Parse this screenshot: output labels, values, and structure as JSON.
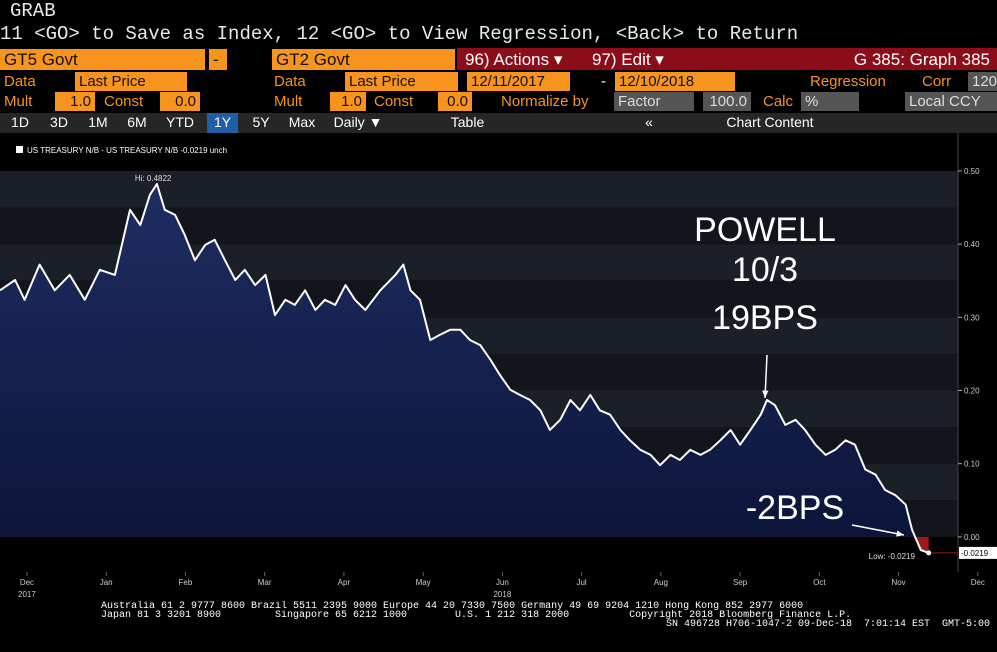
{
  "header": {
    "title": "GRAB",
    "command": "11 <GO> to Save as Index, 12 <GO> to View Regression, <Back> to Return"
  },
  "toolbar": {
    "security1": "GT5 Govt",
    "operator": "-",
    "security2": "GT2 Govt",
    "actions": "96) Actions ▾",
    "edit": "97) Edit ▾",
    "graph": "G 385: Graph 385"
  },
  "row1": {
    "data1": "Data",
    "field1": "Last Price",
    "data2": "Data",
    "field2": "Last Price",
    "start": "12/11/2017",
    "dash": "-",
    "end": "12/10/2018",
    "regression": "Regression",
    "corr": "Corr",
    "corr_value": "120"
  },
  "row2": {
    "mult1": "Mult",
    "mult1_value": "1.0",
    "const1": "Const",
    "const1_value": "0.0",
    "mult2": "Mult",
    "mult2_value": "1.0",
    "const2": "Const",
    "const2_value": "0.0",
    "normalize": "Normalize by",
    "normalize_value": "Factor",
    "factor": "100.0",
    "calc": "Calc",
    "calc_value": "%",
    "currency": "Local CCY"
  },
  "tabs": [
    "1D",
    "3D",
    "1M",
    "6M",
    "YTD",
    "1Y",
    "5Y",
    "Max",
    "Daily ▼",
    "Table",
    "«",
    "Chart Content"
  ],
  "chart_data": {
    "type": "line",
    "series": [
      {
        "name": "US TREASURY N/B - US TREASURY N/B -0.0219  unch",
        "color": "#ffffff",
        "x": [
          -0.34,
          -0.15,
          -0.03,
          0.16,
          0.35,
          0.54,
          0.73,
          0.92,
          1.11,
          1.3,
          1.43,
          1.55,
          1.64,
          1.74,
          1.87,
          1.99,
          2.12,
          2.25,
          2.37,
          2.5,
          2.63,
          2.75,
          2.88,
          3.01,
          3.13,
          3.26,
          3.38,
          3.51,
          3.64,
          3.76,
          3.89,
          4.02,
          4.14,
          4.27,
          4.46,
          4.65,
          4.75,
          4.84,
          4.96,
          5.09,
          5.21,
          5.34,
          5.47,
          5.59,
          5.72,
          5.85,
          5.97,
          6.1,
          6.22,
          6.35,
          6.48,
          6.6,
          6.73,
          6.86,
          6.98,
          7.11,
          7.23,
          7.36,
          7.49,
          7.61,
          7.74,
          7.87,
          7.99,
          8.12,
          8.24,
          8.37,
          8.5,
          8.62,
          8.75,
          8.88,
          9.0,
          9.13,
          9.26,
          9.34,
          9.44,
          9.57,
          9.7,
          9.82,
          9.95,
          10.08,
          10.2,
          10.33,
          10.45,
          10.58,
          10.71,
          10.83,
          10.96,
          11.09,
          11.17,
          11.28,
          11.38
        ],
        "values": [
          0.337,
          0.351,
          0.324,
          0.372,
          0.337,
          0.358,
          0.324,
          0.365,
          0.358,
          0.447,
          0.426,
          0.467,
          0.4822,
          0.447,
          0.44,
          0.413,
          0.378,
          0.399,
          0.406,
          0.378,
          0.351,
          0.365,
          0.344,
          0.358,
          0.303,
          0.324,
          0.317,
          0.337,
          0.31,
          0.324,
          0.317,
          0.344,
          0.324,
          0.31,
          0.337,
          0.358,
          0.372,
          0.337,
          0.324,
          0.269,
          0.276,
          0.283,
          0.283,
          0.269,
          0.262,
          0.242,
          0.221,
          0.201,
          0.194,
          0.187,
          0.173,
          0.146,
          0.16,
          0.187,
          0.173,
          0.194,
          0.173,
          0.167,
          0.146,
          0.132,
          0.119,
          0.112,
          0.098,
          0.112,
          0.105,
          0.119,
          0.112,
          0.119,
          0.132,
          0.146,
          0.126,
          0.146,
          0.167,
          0.187,
          0.18,
          0.153,
          0.16,
          0.146,
          0.126,
          0.112,
          0.119,
          0.132,
          0.126,
          0.092,
          0.085,
          0.064,
          0.057,
          0.044,
          0.01,
          -0.018,
          -0.0219
        ]
      }
    ],
    "xlim": [
      -0.34,
      11.75
    ],
    "xticks": [
      {
        "value": 0,
        "label": "Dec"
      },
      {
        "value": 1,
        "label": "Jan"
      },
      {
        "value": 2,
        "label": "Feb"
      },
      {
        "value": 3,
        "label": "Mar"
      },
      {
        "value": 4,
        "label": "Apr"
      },
      {
        "value": 5,
        "label": "May"
      },
      {
        "value": 6,
        "label": "Jun"
      },
      {
        "value": 7,
        "label": "Jul"
      },
      {
        "value": 8,
        "label": "Aug"
      },
      {
        "value": 9,
        "label": "Sep"
      },
      {
        "value": 10,
        "label": "Oct"
      },
      {
        "value": 11,
        "label": "Nov"
      },
      {
        "value": 12,
        "label": "Dec"
      }
    ],
    "x_year_labels": [
      {
        "value": 0,
        "label": "2017"
      },
      {
        "value": 6,
        "label": "2018"
      }
    ],
    "ylim": [
      -0.048,
      0.515
    ],
    "yticks": [
      {
        "value": 0,
        "label": "0.00"
      },
      {
        "value": 0.1,
        "label": "0.10"
      },
      {
        "value": 0.2,
        "label": "0.20"
      },
      {
        "value": 0.3,
        "label": "0.30"
      },
      {
        "value": 0.4,
        "label": "0.40"
      },
      {
        "value": 0.5,
        "label": "0.50"
      }
    ],
    "last_value_label": "-0.0219",
    "high_label": "Hi: 0.4822",
    "low_label": "Low: -0.0219",
    "annotations": [
      {
        "lines": [
          "POWELL",
          "10/3",
          "19BPS"
        ]
      },
      {
        "lines": [
          "-2BPS"
        ]
      }
    ]
  },
  "footer": {
    "line1": "Australia 61 2 9777 8600 Brazil 5511 2395 9000 Europe 44 20 7330 7500 Germany 49 69 9204 1210 Hong Kong 852 2977 6000",
    "line2": "Japan 81 3 3201 8900         Singapore 65 6212 1000        U.S. 1 212 318 2000          Copyright 2018 Bloomberg Finance L.P.",
    "line3": "SN 496728 H706-1047-2 09-Dec-18  7:01:14 EST  GMT-5:00"
  }
}
